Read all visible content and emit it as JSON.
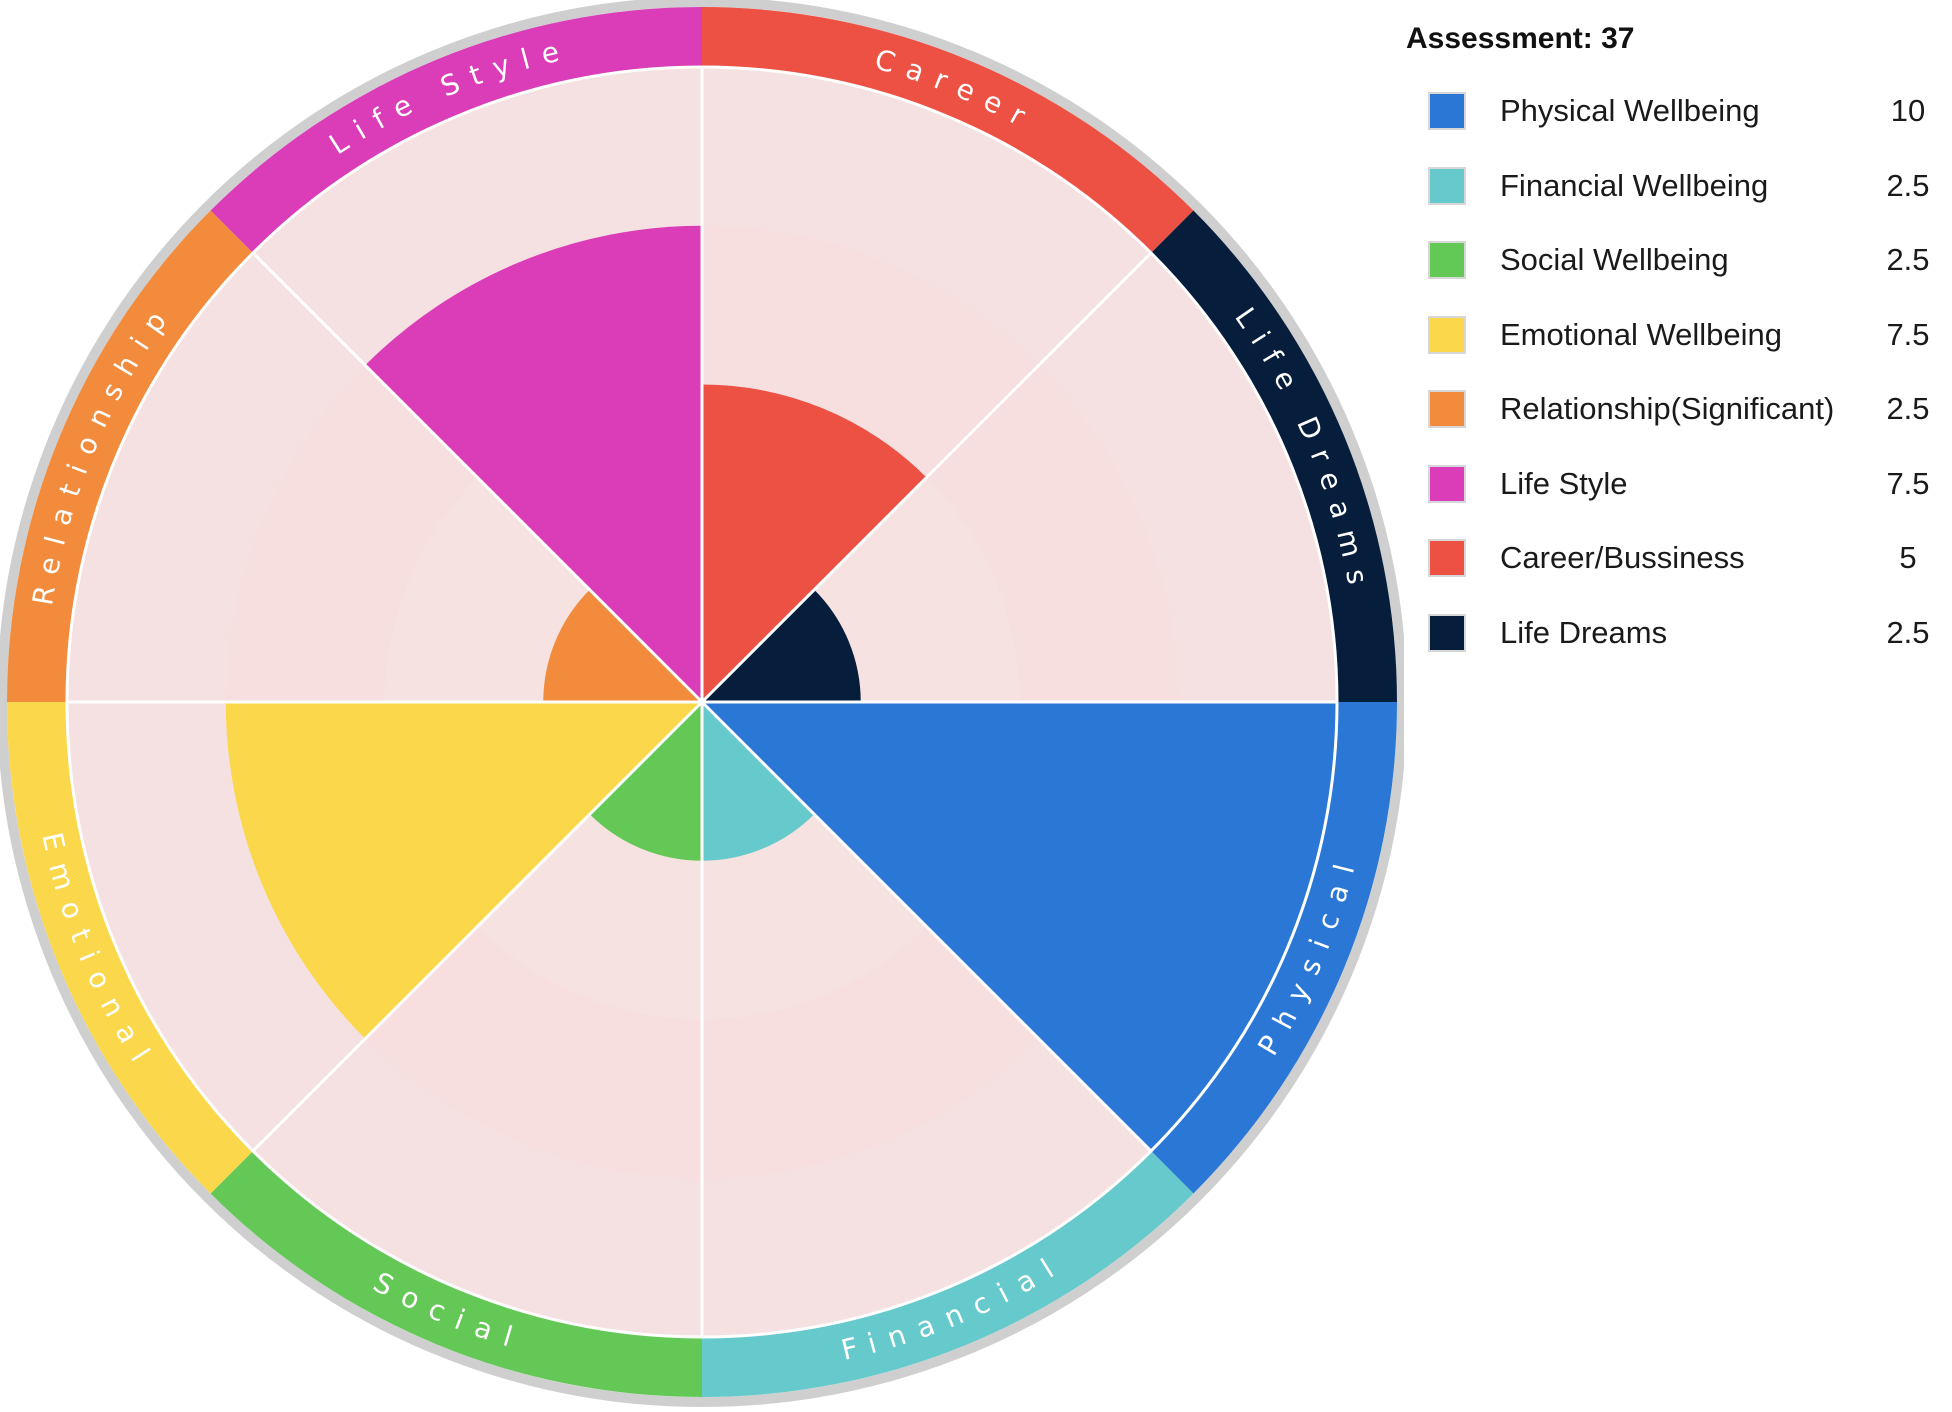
{
  "legend_title": "Assessment: 37",
  "chart_data": {
    "type": "polar-area",
    "max_value": 10,
    "rings": [
      2.5,
      5,
      7.5,
      10
    ],
    "segments": [
      {
        "label": "Physical Wellbeing",
        "ring_label": "Physical",
        "value": 10,
        "color": "#2a77d6"
      },
      {
        "label": "Financial Wellbeing",
        "ring_label": "Financial",
        "value": 2.5,
        "color": "#66c9cc"
      },
      {
        "label": "Social Wellbeing",
        "ring_label": "Social",
        "value": 2.5,
        "color": "#64c857"
      },
      {
        "label": "Emotional Wellbeing",
        "ring_label": "Emotional",
        "value": 7.5,
        "color": "#fbd84b"
      },
      {
        "label": "Relationship(Significant)",
        "ring_label": "Relationship",
        "value": 2.5,
        "color": "#f28b3b"
      },
      {
        "label": "Life Style",
        "ring_label": "Life Style",
        "value": 7.5,
        "color": "#db3cb8"
      },
      {
        "label": "Career/Bussiness",
        "ring_label": "Career",
        "value": 5,
        "color": "#ec5143"
      },
      {
        "label": "Life Dreams",
        "ring_label": "Life Dreams",
        "value": 2.5,
        "color": "#061e3c"
      }
    ]
  }
}
